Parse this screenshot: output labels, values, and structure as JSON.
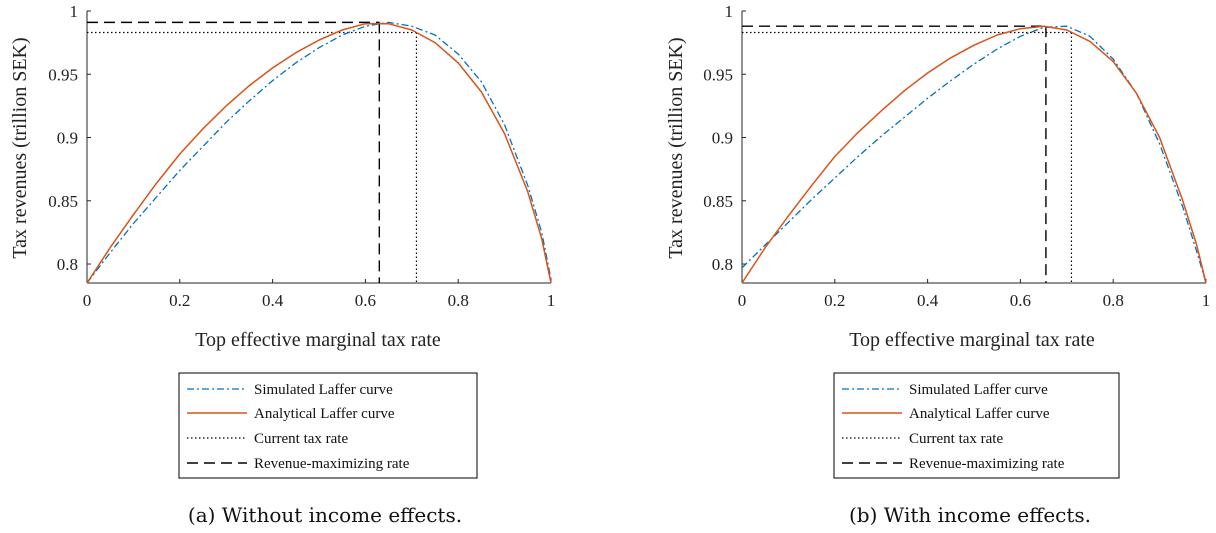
{
  "chart_data": [
    {
      "type": "line",
      "caption": "(a) Without income effects.",
      "xlabel": "Top effective marginal tax rate",
      "ylabel": "Tax revenues (trillion SEK)",
      "xlim": [
        0,
        1
      ],
      "ylim": [
        0.785,
        1.0
      ],
      "xticks": [
        0,
        0.2,
        0.4,
        0.6,
        0.8,
        1
      ],
      "xtick_labels": [
        "0",
        "0.2",
        "0.4",
        "0.6",
        "0.8",
        "1"
      ],
      "yticks": [
        0.8,
        0.85,
        0.9,
        0.95,
        1
      ],
      "ytick_labels": [
        "0.8",
        "0.85",
        "0.9",
        "0.95",
        "1"
      ],
      "grid": false,
      "legend_position": "below",
      "series": [
        {
          "name": "Simulated Laffer curve",
          "color": "#0072BD",
          "style": "dashdot",
          "x": [
            0,
            0.05,
            0.1,
            0.15,
            0.2,
            0.25,
            0.3,
            0.35,
            0.4,
            0.45,
            0.5,
            0.55,
            0.6,
            0.65,
            0.7,
            0.75,
            0.8,
            0.85,
            0.9,
            0.95,
            0.98,
            1
          ],
          "y": [
            0.785,
            0.809,
            0.832,
            0.853,
            0.874,
            0.893,
            0.912,
            0.929,
            0.945,
            0.959,
            0.971,
            0.981,
            0.988,
            0.991,
            0.988,
            0.981,
            0.966,
            0.944,
            0.91,
            0.862,
            0.825,
            0.788
          ]
        },
        {
          "name": "Analytical Laffer curve",
          "color": "#D95319",
          "style": "solid",
          "x": [
            0,
            0.05,
            0.1,
            0.15,
            0.2,
            0.25,
            0.3,
            0.35,
            0.4,
            0.45,
            0.5,
            0.55,
            0.6,
            0.65,
            0.7,
            0.75,
            0.8,
            0.85,
            0.9,
            0.95,
            0.98,
            1
          ],
          "y": [
            0.785,
            0.813,
            0.839,
            0.864,
            0.887,
            0.907,
            0.925,
            0.941,
            0.955,
            0.967,
            0.977,
            0.985,
            0.99,
            0.99,
            0.985,
            0.975,
            0.959,
            0.936,
            0.903,
            0.857,
            0.82,
            0.785
          ]
        },
        {
          "name": "Current tax rate",
          "color": "#000000",
          "style": "dotted",
          "x_value": 0.71,
          "y_value": 0.983
        },
        {
          "name": "Revenue-maximizing rate",
          "color": "#000000",
          "style": "dashed",
          "x_value": 0.63,
          "y_value": 0.991
        }
      ]
    },
    {
      "type": "line",
      "caption": "(b) With income effects.",
      "xlabel": "Top effective marginal tax rate",
      "ylabel": "Tax revenues (trillion SEK)",
      "xlim": [
        0,
        1
      ],
      "ylim": [
        0.785,
        1.0
      ],
      "xticks": [
        0,
        0.2,
        0.4,
        0.6,
        0.8,
        1
      ],
      "xtick_labels": [
        "0",
        "0.2",
        "0.4",
        "0.6",
        "0.8",
        "1"
      ],
      "yticks": [
        0.8,
        0.85,
        0.9,
        0.95,
        1
      ],
      "ytick_labels": [
        "0.8",
        "0.85",
        "0.9",
        "0.95",
        "1"
      ],
      "grid": false,
      "legend_position": "below",
      "series": [
        {
          "name": "Simulated Laffer curve",
          "color": "#0072BD",
          "style": "dashdot",
          "x": [
            0,
            0.05,
            0.1,
            0.15,
            0.2,
            0.25,
            0.3,
            0.35,
            0.4,
            0.45,
            0.5,
            0.55,
            0.6,
            0.65,
            0.7,
            0.75,
            0.8,
            0.85,
            0.9,
            0.95,
            0.98,
            1
          ],
          "y": [
            0.797,
            0.815,
            0.833,
            0.851,
            0.868,
            0.885,
            0.901,
            0.916,
            0.931,
            0.945,
            0.958,
            0.97,
            0.98,
            0.987,
            0.988,
            0.98,
            0.962,
            0.935,
            0.895,
            0.845,
            0.81,
            0.785
          ]
        },
        {
          "name": "Analytical Laffer curve",
          "color": "#D95319",
          "style": "solid",
          "x": [
            0,
            0.05,
            0.1,
            0.15,
            0.2,
            0.25,
            0.3,
            0.35,
            0.4,
            0.45,
            0.5,
            0.55,
            0.6,
            0.65,
            0.7,
            0.75,
            0.8,
            0.85,
            0.9,
            0.95,
            0.98,
            1
          ],
          "y": [
            0.785,
            0.813,
            0.838,
            0.862,
            0.885,
            0.904,
            0.921,
            0.937,
            0.951,
            0.963,
            0.973,
            0.981,
            0.986,
            0.988,
            0.985,
            0.976,
            0.96,
            0.935,
            0.9,
            0.85,
            0.815,
            0.785
          ]
        },
        {
          "name": "Current tax rate",
          "color": "#000000",
          "style": "dotted",
          "x_value": 0.71,
          "y_value": 0.983
        },
        {
          "name": "Revenue-maximizing rate",
          "color": "#000000",
          "style": "dashed",
          "x_value": 0.655,
          "y_value": 0.988
        }
      ]
    }
  ]
}
